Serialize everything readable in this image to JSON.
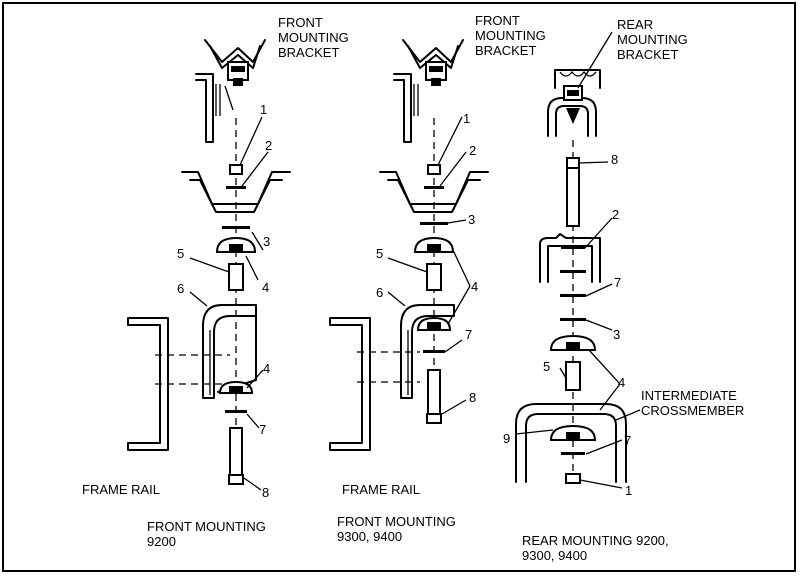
{
  "labels": {
    "front_bracket_1": [
      "FRONT",
      "MOUNTING",
      "BRACKET"
    ],
    "front_bracket_2": [
      "FRONT",
      "MOUNTING",
      "BRACKET"
    ],
    "rear_bracket": [
      "REAR",
      "MOUNTING",
      "BRACKET"
    ],
    "intermediate": [
      "INTERMEDIATE",
      "CROSSMEMBER"
    ],
    "frame_rail_1": "FRAME RAIL",
    "frame_rail_2": "FRAME RAIL"
  },
  "captions": {
    "panel_1": [
      "FRONT MOUNTING",
      "9200"
    ],
    "panel_2": [
      "FRONT MOUNTING",
      "9300,  9400"
    ],
    "panel_3": [
      "REAR MOUNTING 9200,",
      "9300,  9400"
    ]
  },
  "callouts": {
    "p1": [
      "1",
      "2",
      "3",
      "4",
      "5",
      "6",
      "4",
      "7",
      "8"
    ],
    "p2": [
      "1",
      "2",
      "3",
      "5",
      "4",
      "6",
      "7",
      "8"
    ],
    "p3": [
      "8",
      "2",
      "7",
      "3",
      "5",
      "4",
      "9",
      "7",
      "1"
    ]
  }
}
